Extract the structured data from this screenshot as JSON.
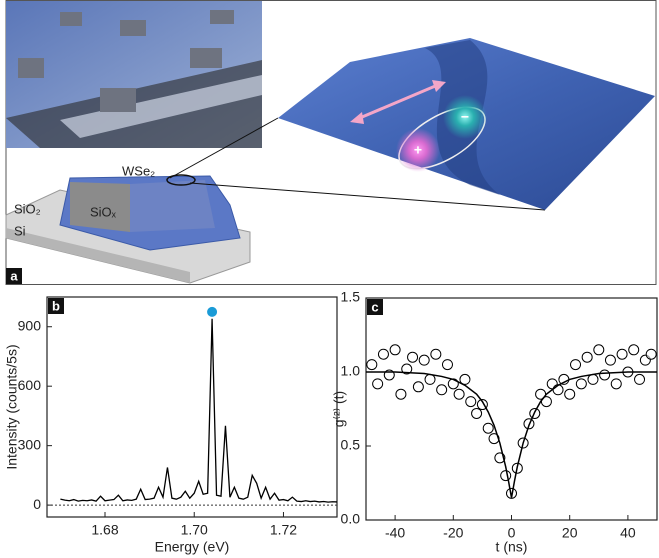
{
  "diagram": {
    "panel_label": "a",
    "labels": {
      "layer": "WSe₂",
      "substrate": "SiO₂",
      "pillar": "SiOₓ",
      "base": "Si",
      "hole": "+",
      "electron": "−"
    }
  },
  "chart_data": [
    {
      "type": "line",
      "panel_label": "b",
      "x_label": "Energy (eV)",
      "y_label": "Intensity (counts/5s)",
      "x": [
        1.67,
        1.671,
        1.672,
        1.673,
        1.674,
        1.675,
        1.676,
        1.677,
        1.678,
        1.679,
        1.68,
        1.681,
        1.682,
        1.683,
        1.684,
        1.685,
        1.686,
        1.687,
        1.688,
        1.689,
        1.69,
        1.691,
        1.692,
        1.693,
        1.694,
        1.695,
        1.696,
        1.697,
        1.698,
        1.699,
        1.7,
        1.701,
        1.702,
        1.703,
        1.704,
        1.705,
        1.706,
        1.707,
        1.708,
        1.709,
        1.71,
        1.711,
        1.712,
        1.713,
        1.714,
        1.715,
        1.716,
        1.717,
        1.718,
        1.719,
        1.72,
        1.721,
        1.722,
        1.723,
        1.724,
        1.725,
        1.726,
        1.727,
        1.728,
        1.729,
        1.73,
        1.731,
        1.732
      ],
      "values": [
        30,
        25,
        22,
        28,
        20,
        24,
        22,
        26,
        20,
        45,
        22,
        25,
        28,
        50,
        22,
        26,
        24,
        30,
        80,
        28,
        30,
        35,
        90,
        40,
        190,
        35,
        30,
        40,
        70,
        35,
        60,
        120,
        55,
        60,
        940,
        50,
        45,
        400,
        40,
        90,
        35,
        30,
        40,
        150,
        110,
        35,
        90,
        30,
        60,
        25,
        28,
        22,
        40,
        20,
        18,
        22,
        18,
        20,
        16,
        18,
        15,
        17,
        16
      ],
      "color": "#000000",
      "marker_x": 1.704,
      "marker_y": 975,
      "marker_color": "#1a9bd7",
      "zero_line": true,
      "xlim": [
        1.667,
        1.732
      ],
      "ylim": [
        -60,
        1050
      ],
      "xticks": [
        1.68,
        {
          "value": 1.7,
          "label": "1.70"
        },
        1.72
      ],
      "yticks": [
        0,
        300,
        600,
        900
      ]
    },
    {
      "type": "scatter",
      "panel_label": "c",
      "x_label": "t (ns)",
      "y_label": "g⁽²⁾ (t)",
      "x": [
        -48,
        -46,
        -44,
        -42,
        -40,
        -38,
        -36,
        -34,
        -32,
        -30,
        -28,
        -26,
        -24,
        -22,
        -20,
        -18,
        -16,
        -14,
        -12,
        -10,
        -8,
        -6,
        -4,
        -2,
        0,
        2,
        4,
        6,
        8,
        10,
        12,
        14,
        16,
        18,
        20,
        22,
        24,
        26,
        28,
        30,
        32,
        34,
        36,
        38,
        40,
        42,
        44,
        46,
        48
      ],
      "values": [
        1.05,
        0.92,
        1.12,
        0.98,
        1.15,
        0.85,
        1.02,
        1.1,
        0.9,
        1.08,
        0.95,
        1.12,
        0.88,
        1.05,
        0.92,
        0.85,
        0.95,
        0.8,
        0.72,
        0.78,
        0.62,
        0.55,
        0.42,
        0.3,
        0.18,
        0.35,
        0.52,
        0.65,
        0.72,
        0.85,
        0.8,
        0.92,
        0.88,
        0.95,
        0.85,
        1.05,
        0.92,
        1.1,
        0.95,
        1.15,
        0.98,
        1.08,
        0.92,
        1.12,
        1.0,
        1.15,
        0.95,
        1.08,
        1.12
      ],
      "fit_x": [
        -50,
        -40,
        -30,
        -24,
        -20,
        -16,
        -12,
        -10,
        -8,
        -6,
        -4,
        -2,
        -1,
        0,
        1,
        2,
        4,
        6,
        8,
        10,
        12,
        16,
        20,
        24,
        30,
        40,
        50
      ],
      "fit_values": [
        1.0,
        1.0,
        0.99,
        0.97,
        0.95,
        0.91,
        0.85,
        0.8,
        0.73,
        0.64,
        0.52,
        0.36,
        0.26,
        0.15,
        0.26,
        0.36,
        0.52,
        0.64,
        0.73,
        0.8,
        0.85,
        0.91,
        0.95,
        0.97,
        0.99,
        1.0,
        1.0
      ],
      "color": "#000000",
      "xlim": [
        -50,
        50
      ],
      "ylim": [
        0,
        1.5
      ],
      "xticks": [
        -40,
        -20,
        0,
        20,
        40
      ],
      "yticks": [
        {
          "value": 0,
          "label": "0.0"
        },
        0.5,
        {
          "value": 1,
          "label": "1.0"
        },
        1.5
      ]
    }
  ]
}
